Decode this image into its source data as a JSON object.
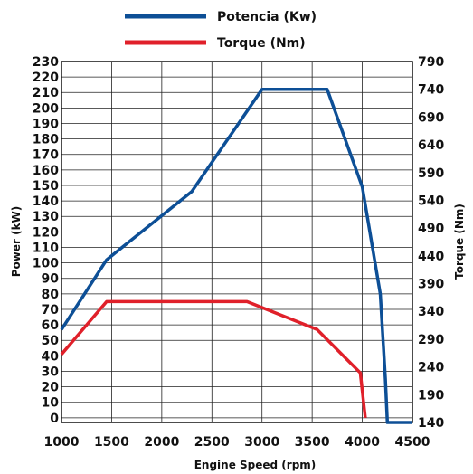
{
  "chart_data": {
    "type": "line",
    "xlabel": "Engine Speed (rpm)",
    "ylabel_left": "Power (kW)",
    "ylabel_right": "Torque (Nm)",
    "xlim": [
      1000,
      4500
    ],
    "x_ticks": [
      1000,
      1500,
      2000,
      2500,
      3000,
      3500,
      4000,
      4500
    ],
    "left_ticks": [
      0,
      10,
      20,
      30,
      40,
      50,
      60,
      70,
      80,
      90,
      100,
      110,
      120,
      130,
      140,
      150,
      160,
      170,
      180,
      190,
      200,
      210,
      220,
      230
    ],
    "right_ticks": [
      140,
      190,
      240,
      290,
      340,
      390,
      440,
      490,
      540,
      590,
      640,
      690,
      740,
      790
    ],
    "ylim_left": [
      -3,
      230
    ],
    "ylim_right": [
      140,
      790
    ],
    "grid": true,
    "legend_position": "top-center",
    "series": [
      {
        "name": "Potencia (Kw)",
        "color": "#0d4f96",
        "axis": "left",
        "x": [
          1000,
          1450,
          2300,
          3000,
          3650,
          4000,
          4180,
          4230,
          4250,
          4500
        ],
        "y": [
          57,
          102,
          146,
          212,
          212,
          149,
          80,
          25,
          -3,
          -3
        ]
      },
      {
        "name": "Torque (Nm)",
        "color": "#e0202a",
        "axis": "left",
        "x": [
          1000,
          1450,
          2850,
          3550,
          3980,
          4030
        ],
        "y": [
          41,
          75,
          75,
          57,
          29,
          0
        ]
      }
    ]
  }
}
